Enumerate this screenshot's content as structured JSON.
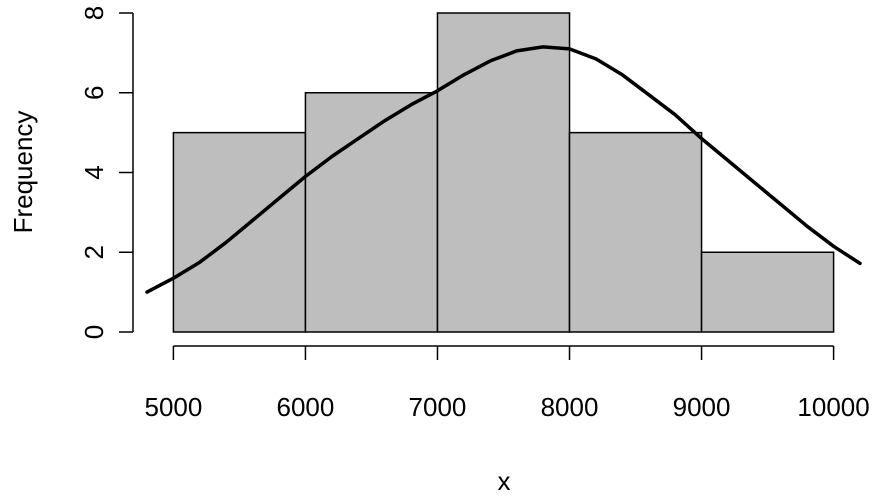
{
  "chart_data": {
    "type": "bar",
    "subtype": "histogram",
    "bins": [
      {
        "from": 5000,
        "to": 6000,
        "value": 5
      },
      {
        "from": 6000,
        "to": 7000,
        "value": 6
      },
      {
        "from": 7000,
        "to": 8000,
        "value": 8
      },
      {
        "from": 8000,
        "to": 9000,
        "value": 5
      },
      {
        "from": 9000,
        "to": 10000,
        "value": 2
      }
    ],
    "values": [
      5,
      6,
      8,
      5,
      2
    ],
    "curve": {
      "type": "line",
      "x": [
        4800,
        5000,
        5200,
        5400,
        5600,
        5800,
        6000,
        6200,
        6400,
        6600,
        6800,
        7000,
        7200,
        7400,
        7600,
        7800,
        8000,
        8200,
        8400,
        8600,
        8800,
        9000,
        9200,
        9400,
        9600,
        9800,
        10000,
        10200
      ],
      "y": [
        1.0,
        1.35,
        1.75,
        2.25,
        2.8,
        3.35,
        3.9,
        4.4,
        4.85,
        5.3,
        5.7,
        6.05,
        6.45,
        6.8,
        7.05,
        7.15,
        7.1,
        6.85,
        6.45,
        5.95,
        5.45,
        4.85,
        4.3,
        3.75,
        3.2,
        2.65,
        2.15,
        1.72
      ]
    },
    "xticks": [
      "5000",
      "6000",
      "7000",
      "8000",
      "9000",
      "10000"
    ],
    "xtick_values": [
      5000,
      6000,
      7000,
      8000,
      9000,
      10000
    ],
    "yticks": [
      "0",
      "2",
      "4",
      "6",
      "8"
    ],
    "ytick_values": [
      0,
      2,
      4,
      6,
      8
    ],
    "xlim": [
      4800,
      10200
    ],
    "ylim": [
      0,
      8
    ],
    "title": "",
    "xlabel": "x",
    "ylabel": "Frequency",
    "grid": false,
    "colors": {
      "bar_fill": "#bebebe",
      "bar_stroke": "#000000",
      "curve": "#000000"
    }
  }
}
